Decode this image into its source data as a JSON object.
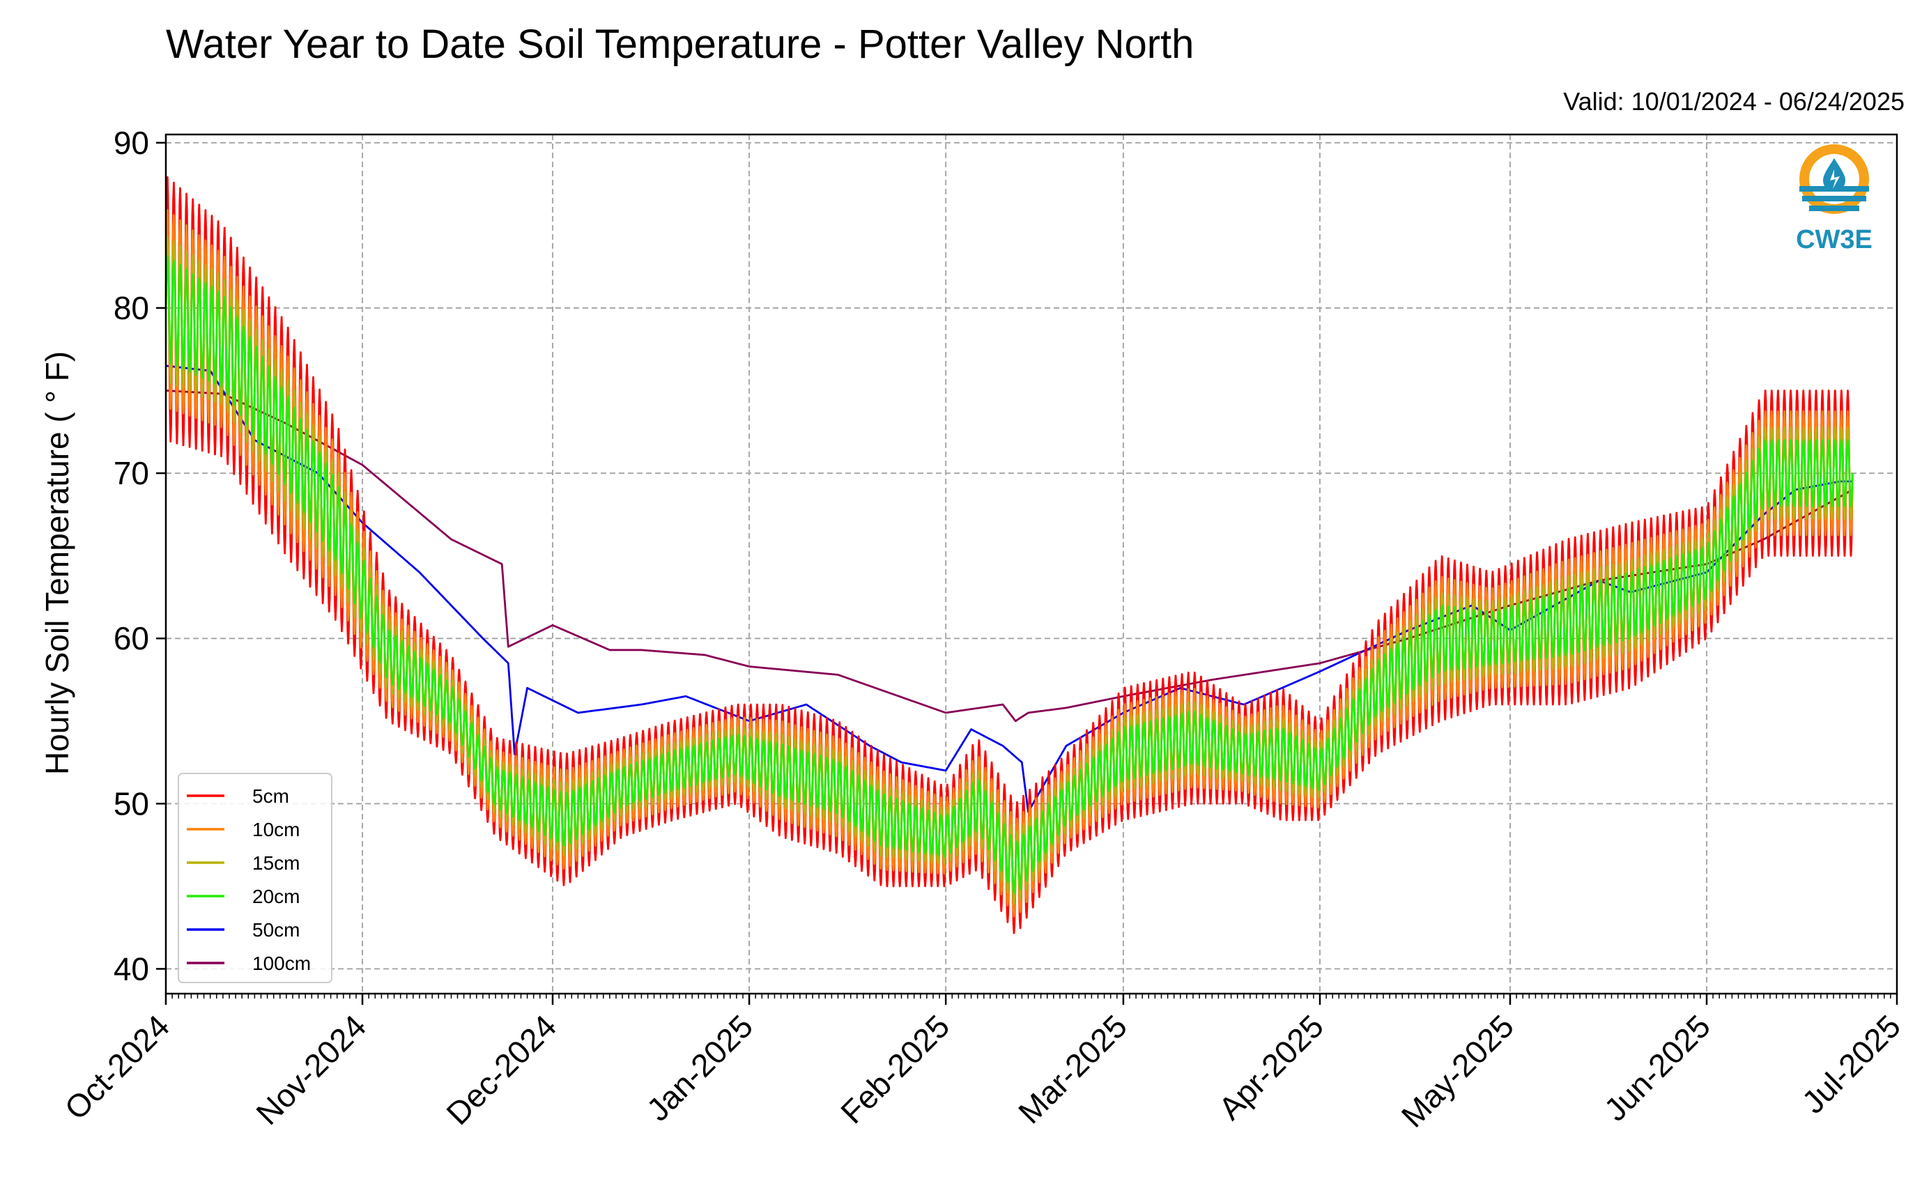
{
  "chart_data": {
    "type": "line",
    "title": "Water Year to Date Soil Temperature - Potter Valley North",
    "subtitle": "Valid: 10/01/2024 - 06/24/2025",
    "ylabel": "Hourly Soil Temperature ($^\\circ$F)",
    "ylabel_display": "Hourly Soil Temperature ( ° F)",
    "xlabel": "",
    "ylim": [
      38.5,
      90.5
    ],
    "yticks": [
      40,
      50,
      60,
      70,
      80,
      90
    ],
    "xlim": [
      "2024-10-01",
      "2025-07-01"
    ],
    "xticks": [
      "2024-10-01",
      "2024-11-01",
      "2024-12-01",
      "2025-01-01",
      "2025-02-01",
      "2025-03-01",
      "2025-04-01",
      "2025-05-01",
      "2025-06-01",
      "2025-07-01"
    ],
    "xtick_labels": [
      "Oct-2024",
      "Nov-2024",
      "Dec-2024",
      "Jan-2025",
      "Feb-2025",
      "Mar-2025",
      "Apr-2025",
      "May-2025",
      "Jun-2025",
      "Jul-2025"
    ],
    "grid": true,
    "legend_position": "lower-left",
    "logo_text": "CW3E",
    "series": [
      {
        "name": "5cm",
        "color": "#ff0000",
        "amplitude_factor": 1.0,
        "x": [
          "2024-10-01",
          "2024-10-10",
          "2024-10-20",
          "2024-10-28",
          "2024-11-05",
          "2024-11-15",
          "2024-11-22",
          "2024-12-03",
          "2024-12-12",
          "2024-12-20",
          "2024-12-30",
          "2025-01-06",
          "2025-01-15",
          "2025-01-22",
          "2025-02-01",
          "2025-02-06",
          "2025-02-12",
          "2025-02-20",
          "2025-03-01",
          "2025-03-12",
          "2025-03-20",
          "2025-03-26",
          "2025-04-01",
          "2025-04-10",
          "2025-04-20",
          "2025-04-28",
          "2025-05-10",
          "2025-05-20",
          "2025-06-01",
          "2025-06-10",
          "2025-06-18",
          "2025-06-24"
        ],
        "y": [
          80,
          78,
          72,
          67,
          59,
          56,
          51,
          49,
          51,
          52,
          53,
          52,
          51,
          49,
          48,
          50,
          46,
          50,
          53,
          54,
          53,
          53,
          52,
          57,
          60,
          60,
          61,
          62,
          64,
          70,
          70,
          70
        ],
        "amp": [
          8,
          7,
          7,
          6,
          4,
          3,
          3,
          4,
          3,
          3,
          3,
          4,
          4,
          4,
          3,
          4,
          4,
          3,
          4,
          4,
          3,
          4,
          3,
          4,
          5,
          4,
          5,
          5,
          4,
          5,
          5,
          5
        ]
      },
      {
        "name": "10cm",
        "color": "#ff8000",
        "amplitude_factor": 0.75,
        "x": [
          "2024-10-01",
          "2024-10-10",
          "2024-10-20",
          "2024-10-28",
          "2024-11-05",
          "2024-11-15",
          "2024-11-22",
          "2024-12-03",
          "2024-12-12",
          "2024-12-20",
          "2024-12-30",
          "2025-01-06",
          "2025-01-15",
          "2025-01-22",
          "2025-02-01",
          "2025-02-06",
          "2025-02-12",
          "2025-02-20",
          "2025-03-01",
          "2025-03-12",
          "2025-03-20",
          "2025-03-26",
          "2025-04-01",
          "2025-04-10",
          "2025-04-20",
          "2025-04-28",
          "2025-05-10",
          "2025-05-20",
          "2025-06-01",
          "2025-06-10",
          "2025-06-18",
          "2025-06-24"
        ],
        "y": [
          80,
          78,
          72,
          67,
          59,
          56,
          51,
          49,
          51,
          52,
          53,
          52,
          51,
          49,
          48,
          50,
          46,
          50,
          53,
          54,
          53,
          53,
          52,
          57,
          60,
          60,
          61,
          62,
          64,
          70,
          70,
          70
        ],
        "amp": [
          8,
          7,
          7,
          6,
          4,
          3,
          3,
          4,
          3,
          3,
          3,
          4,
          4,
          4,
          3,
          4,
          4,
          3,
          4,
          4,
          3,
          4,
          3,
          4,
          5,
          4,
          5,
          5,
          4,
          5,
          5,
          5
        ]
      },
      {
        "name": "15cm",
        "color": "#b8b400",
        "amplitude_factor": 0.55,
        "x": [
          "2024-10-01",
          "2024-10-10",
          "2024-10-20",
          "2024-10-28",
          "2024-11-05",
          "2024-11-15",
          "2024-11-22",
          "2024-12-03",
          "2024-12-12",
          "2024-12-20",
          "2024-12-30",
          "2025-01-06",
          "2025-01-15",
          "2025-01-22",
          "2025-02-01",
          "2025-02-06",
          "2025-02-12",
          "2025-02-20",
          "2025-03-01",
          "2025-03-12",
          "2025-03-20",
          "2025-03-26",
          "2025-04-01",
          "2025-04-10",
          "2025-04-20",
          "2025-04-28",
          "2025-05-10",
          "2025-05-20",
          "2025-06-01",
          "2025-06-10",
          "2025-06-18",
          "2025-06-24"
        ],
        "y": [
          80,
          78,
          72,
          67,
          59,
          56,
          51,
          49,
          51,
          52,
          53,
          52,
          51,
          49,
          48,
          50,
          46,
          50,
          53,
          54,
          53,
          53,
          52,
          57,
          60,
          60,
          61,
          62,
          64,
          70,
          70,
          70
        ],
        "amp": [
          8,
          7,
          7,
          6,
          4,
          3,
          3,
          4,
          3,
          3,
          3,
          4,
          4,
          4,
          3,
          4,
          4,
          3,
          4,
          4,
          3,
          4,
          3,
          4,
          5,
          4,
          5,
          5,
          4,
          5,
          5,
          5
        ]
      },
      {
        "name": "20cm",
        "color": "#22ee00",
        "amplitude_factor": 0.4,
        "x": [
          "2024-10-01",
          "2024-10-10",
          "2024-10-20",
          "2024-10-28",
          "2024-11-05",
          "2024-11-15",
          "2024-11-22",
          "2024-12-03",
          "2024-12-12",
          "2024-12-20",
          "2024-12-30",
          "2025-01-06",
          "2025-01-15",
          "2025-01-22",
          "2025-02-01",
          "2025-02-06",
          "2025-02-12",
          "2025-02-20",
          "2025-03-01",
          "2025-03-12",
          "2025-03-20",
          "2025-03-26",
          "2025-04-01",
          "2025-04-10",
          "2025-04-20",
          "2025-04-28",
          "2025-05-10",
          "2025-05-20",
          "2025-06-01",
          "2025-06-10",
          "2025-06-18",
          "2025-06-24"
        ],
        "y": [
          80,
          78,
          72,
          67,
          59,
          56,
          51,
          49,
          51,
          52,
          53,
          52,
          51,
          49,
          48,
          50,
          46,
          50,
          53,
          54,
          53,
          53,
          52,
          57,
          60,
          60,
          61,
          62,
          64,
          70,
          70,
          70
        ],
        "amp": [
          8,
          7,
          7,
          6,
          4,
          3,
          3,
          4,
          3,
          3,
          3,
          4,
          4,
          4,
          3,
          4,
          4,
          3,
          4,
          4,
          3,
          4,
          3,
          4,
          5,
          4,
          5,
          5,
          4,
          5,
          5,
          5
        ]
      },
      {
        "name": "50cm",
        "color": "#0000ee",
        "x": [
          "2024-10-01",
          "2024-10-08",
          "2024-10-15",
          "2024-10-25",
          "2024-11-01",
          "2024-11-10",
          "2024-11-20",
          "2024-11-24",
          "2024-11-25",
          "2024-11-27",
          "2024-12-05",
          "2024-12-15",
          "2024-12-22",
          "2025-01-01",
          "2025-01-10",
          "2025-01-20",
          "2025-01-25",
          "2025-02-01",
          "2025-02-05",
          "2025-02-10",
          "2025-02-13",
          "2025-02-14",
          "2025-02-20",
          "2025-03-01",
          "2025-03-10",
          "2025-03-20",
          "2025-04-01",
          "2025-04-15",
          "2025-04-25",
          "2025-05-01",
          "2025-05-15",
          "2025-05-20",
          "2025-06-01",
          "2025-06-10",
          "2025-06-15",
          "2025-06-22",
          "2025-06-24"
        ],
        "y": [
          76.5,
          76.2,
          72.0,
          70.0,
          67.0,
          64.0,
          60.0,
          58.5,
          53.0,
          57.0,
          55.5,
          56.0,
          56.5,
          55.0,
          56.0,
          53.5,
          52.5,
          52.0,
          54.5,
          53.5,
          52.5,
          49.5,
          53.5,
          55.5,
          57.0,
          56.0,
          58.0,
          60.5,
          62.0,
          60.5,
          63.5,
          62.8,
          64.0,
          67.5,
          69.0,
          69.5,
          69.5
        ]
      },
      {
        "name": "100cm",
        "color": "#880055",
        "x": [
          "2024-10-01",
          "2024-10-10",
          "2024-10-20",
          "2024-11-01",
          "2024-11-15",
          "2024-11-23",
          "2024-11-24",
          "2024-12-01",
          "2024-12-10",
          "2024-12-15",
          "2024-12-25",
          "2025-01-01",
          "2025-01-15",
          "2025-02-01",
          "2025-02-10",
          "2025-02-12",
          "2025-02-14",
          "2025-02-20",
          "2025-03-01",
          "2025-03-15",
          "2025-04-01",
          "2025-04-15",
          "2025-05-01",
          "2025-05-15",
          "2025-06-01",
          "2025-06-10",
          "2025-06-24"
        ],
        "y": [
          75.0,
          74.8,
          73.0,
          70.5,
          66.0,
          64.5,
          59.5,
          60.8,
          59.3,
          59.3,
          59.0,
          58.3,
          57.8,
          55.5,
          56.0,
          55.0,
          55.5,
          55.8,
          56.5,
          57.5,
          58.5,
          60.0,
          62.0,
          63.5,
          64.5,
          66.0,
          69.0
        ]
      }
    ]
  }
}
